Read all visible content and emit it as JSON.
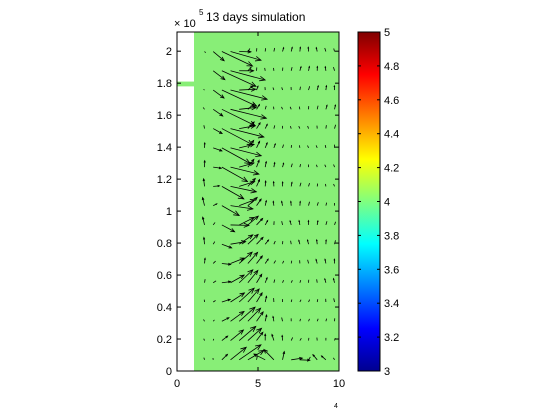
{
  "chart_data": {
    "type": "quiver",
    "title": "13 days simulation",
    "x_axis": {
      "range": [
        0,
        10
      ],
      "ticks": [
        0,
        5,
        10
      ],
      "tick_labels": [
        "0",
        "5",
        "10"
      ],
      "exponent_label": "4"
    },
    "y_axis": {
      "range": [
        0,
        2.12
      ],
      "ticks": [
        0,
        0.2,
        0.4,
        0.6,
        0.8,
        1,
        1.2,
        1.4,
        1.6,
        1.8,
        2
      ],
      "tick_labels": [
        "0",
        "0.2",
        "0.4",
        "0.6",
        "0.8",
        "1",
        "1.2",
        "1.4",
        "1.6",
        "1.8",
        "2"
      ],
      "multiplier_label": "× 10",
      "exponent_label": "5"
    },
    "field": {
      "value": 4,
      "color": "#88ee77",
      "x_range": [
        1.05,
        10
      ],
      "y_range": [
        0,
        2.12
      ],
      "inlet": {
        "x_range": [
          0,
          1.05
        ],
        "y_range": [
          1.78,
          1.81
        ]
      }
    },
    "colorbar": {
      "range": [
        3,
        5
      ],
      "ticks": [
        3,
        3.2,
        3.4,
        3.6,
        3.8,
        4,
        4.2,
        4.4,
        4.6,
        4.8,
        5
      ],
      "tick_labels": [
        "3",
        "3.2",
        "3.4",
        "3.6",
        "3.8",
        "4",
        "4.2",
        "4.4",
        "4.6",
        "4.8",
        "5"
      ],
      "colormap": "jet"
    },
    "quiver_grid": {
      "x_start": 1.7,
      "x_step": 0.535,
      "nx": 16,
      "y_start": 0.07,
      "y_step": 0.1205,
      "ny": 17
    }
  }
}
